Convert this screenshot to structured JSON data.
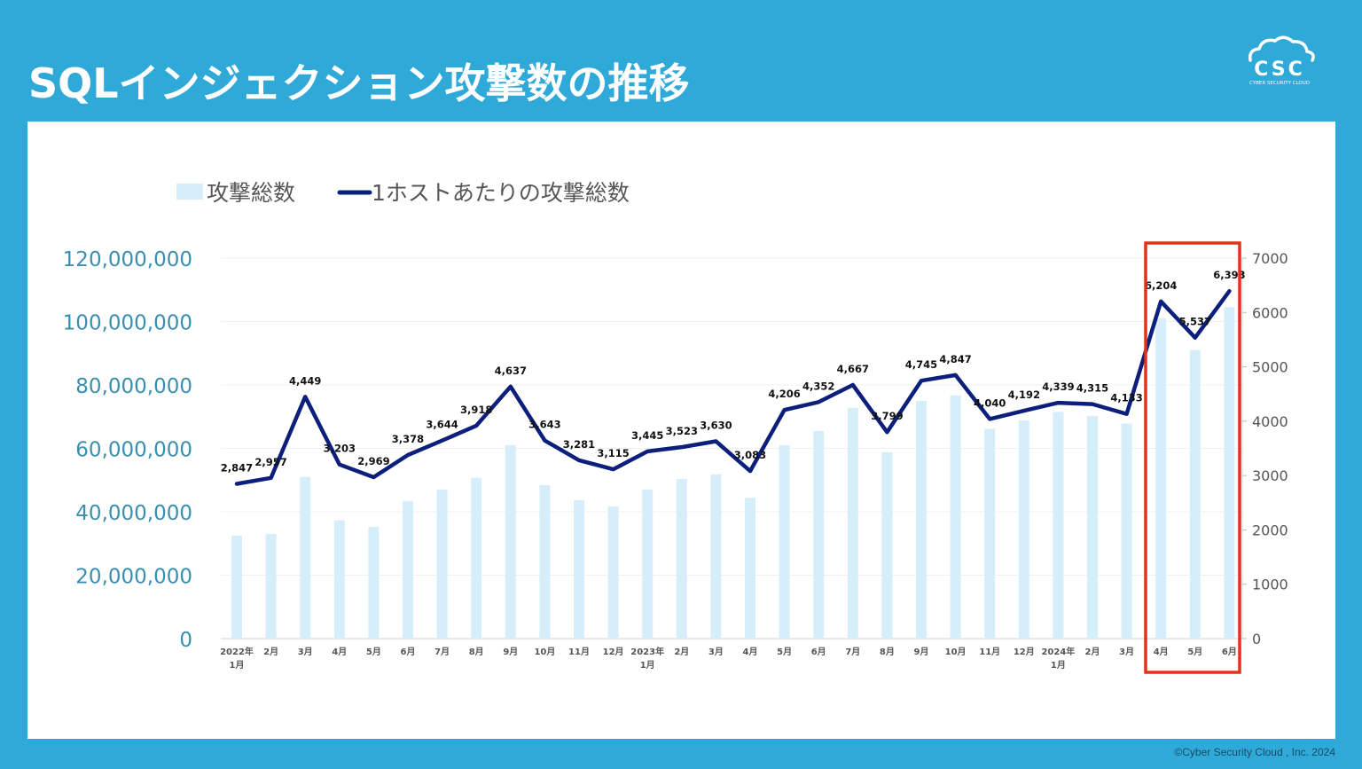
{
  "header": {
    "title": "SQLインジェクション攻撃数の推移",
    "logo_text": "CSC",
    "logo_subtext": "CYBER SECURITY CLOUD"
  },
  "footer": {
    "copyright": "©Cyber Security Cloud , Inc. 2024"
  },
  "colors": {
    "background": "#2fa9d8",
    "bar": "#d6eef9",
    "line": "#0d1f7c",
    "highlight": "#e0321c",
    "axis_left_text": "#3a8fb0",
    "axis_right_text": "#555555"
  },
  "chart_data": {
    "type": "bar",
    "categories": [
      "2022年\n1月",
      "2月",
      "3月",
      "4月",
      "5月",
      "6月",
      "7月",
      "8月",
      "9月",
      "10月",
      "11月",
      "12月",
      "2023年\n1月",
      "2月",
      "3月",
      "4月",
      "5月",
      "6月",
      "7月",
      "8月",
      "9月",
      "10月",
      "11月",
      "12月",
      "2024年\n1月",
      "2月",
      "3月",
      "4月",
      "5月",
      "6月"
    ],
    "series": [
      {
        "name": "攻撃総数",
        "type": "bar",
        "axis": "left",
        "values": [
          32500000,
          33000000,
          51000000,
          37300000,
          35200000,
          43400000,
          47000000,
          50700000,
          61000000,
          48400000,
          43700000,
          41700000,
          47000000,
          50300000,
          51800000,
          44400000,
          61000000,
          65500000,
          72800000,
          58800000,
          75000000,
          76700000,
          66200000,
          68800000,
          71500000,
          70200000,
          67800000,
          101000000,
          91000000,
          104500000
        ]
      },
      {
        "name": "1ホストあたりの攻撃総数",
        "type": "line",
        "axis": "right",
        "values": [
          2847,
          2957,
          4449,
          3203,
          2969,
          3378,
          3644,
          3918,
          4637,
          3643,
          3281,
          3115,
          3445,
          3523,
          3630,
          3083,
          4206,
          4352,
          4667,
          3799,
          4745,
          4847,
          4040,
          4192,
          4339,
          4315,
          4133,
          6204,
          5537,
          6393
        ],
        "labels": [
          "2,847",
          "2,957",
          "4,449",
          "3,203",
          "2,969",
          "3,378",
          "3,644",
          "3,918",
          "4,637",
          "3,643",
          "3,281",
          "3,115",
          "3,445",
          "3,523",
          "3,630",
          "3,083",
          "4,206",
          "4,352",
          "4,667",
          "3,799",
          "4,745",
          "4,847",
          "4,040",
          "4,192",
          "4,339",
          "4,315",
          "4,133",
          "6,204",
          "5,537",
          "6,393"
        ]
      }
    ],
    "y_left": {
      "ylim": [
        0,
        120000000
      ],
      "ticks": [
        "0",
        "20,000,000",
        "40,000,000",
        "60,000,000",
        "80,000,000",
        "100,000,000",
        "120,000,000"
      ]
    },
    "y_right": {
      "ylim": [
        0,
        7000
      ],
      "ticks": [
        "0",
        "1000",
        "2000",
        "3000",
        "4000",
        "5000",
        "6000",
        "7000"
      ]
    },
    "legend": {
      "position": "top-left",
      "items": [
        "攻撃総数",
        "1ホストあたりの攻撃総数"
      ]
    },
    "grid": true,
    "highlight_categories": [
      "4月",
      "5月",
      "6月"
    ]
  }
}
